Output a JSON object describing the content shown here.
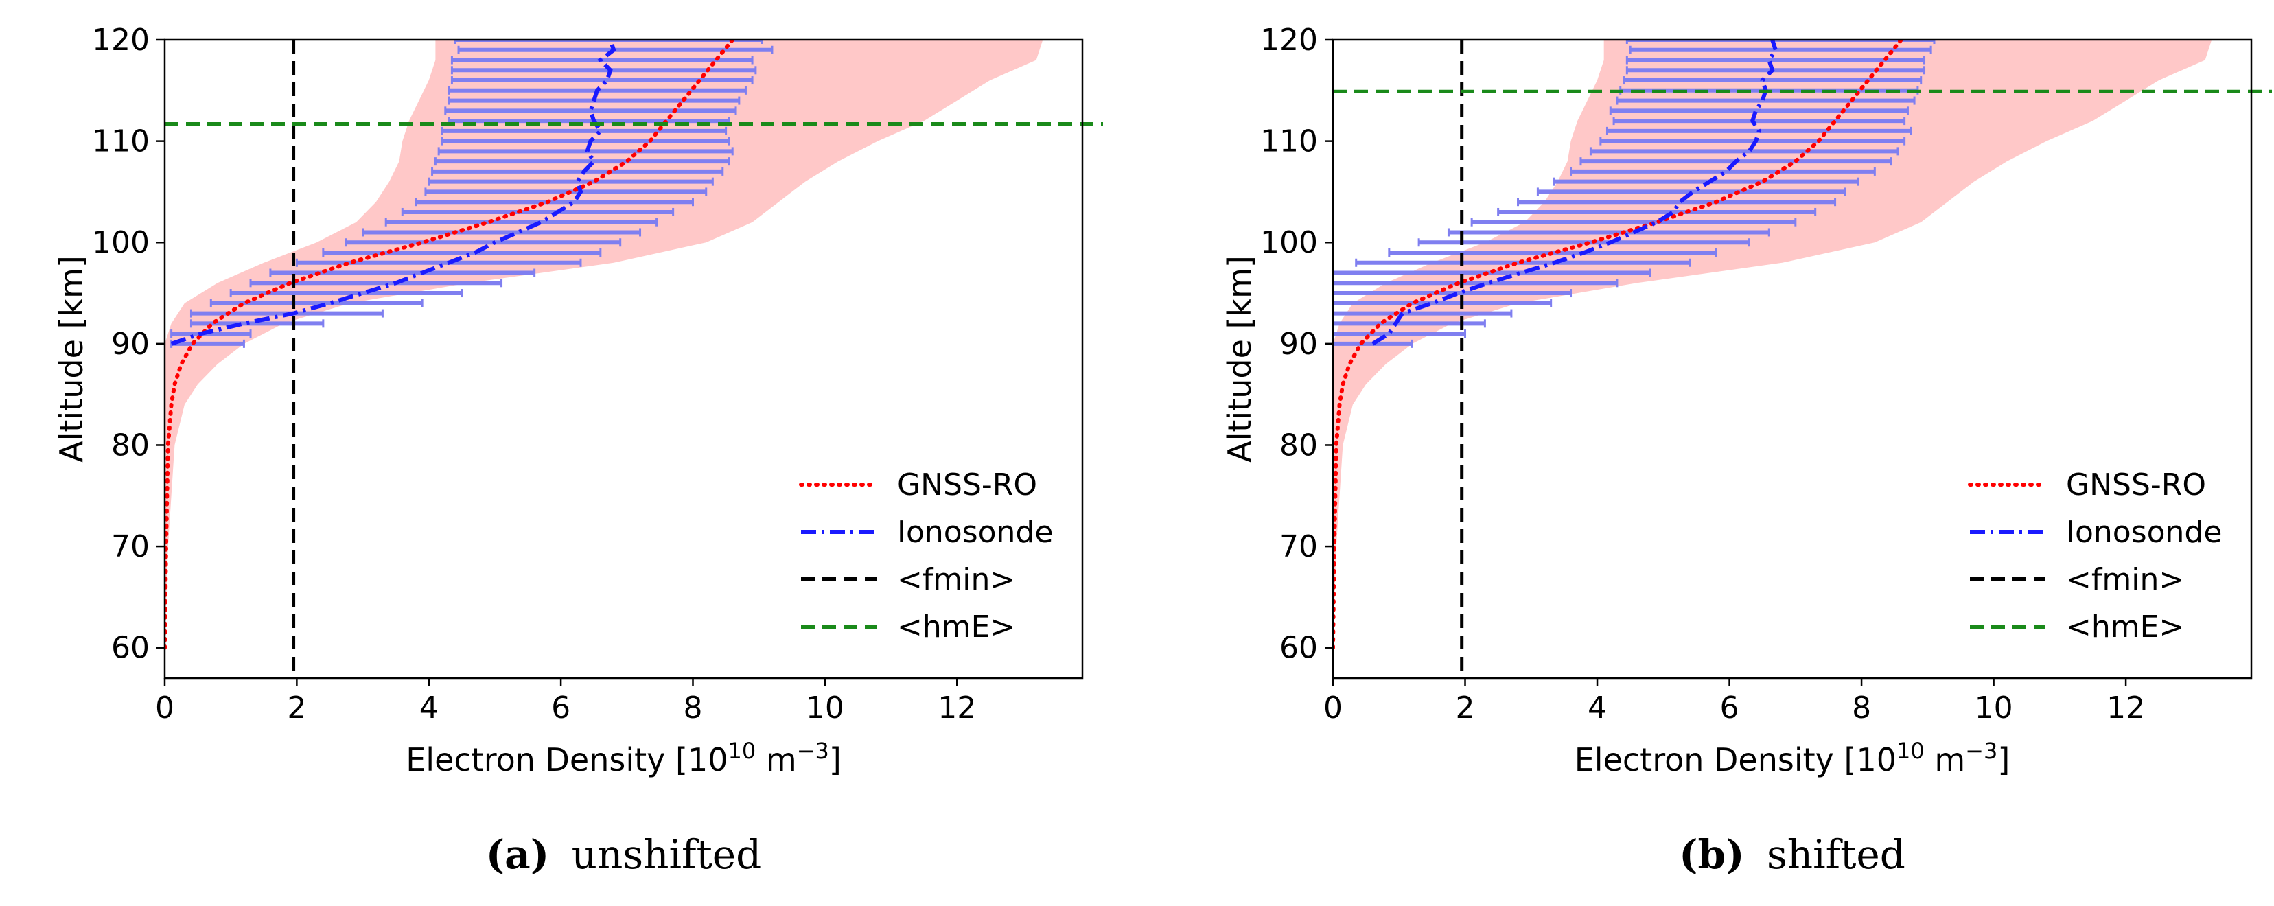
{
  "chart_data": [
    {
      "type": "line",
      "panel": "a",
      "caption_letter": "(a)",
      "caption_text": "unshifted",
      "xlabel_prefix": "Electron Density [10",
      "xlabel_exp": "10",
      "xlabel_mid": " m",
      "xlabel_exp2": "−3",
      "xlabel_suffix": "]",
      "ylabel": "Altitude [km]",
      "xlim": [
        0,
        13.9
      ],
      "ylim": [
        57,
        120
      ],
      "xticks": [
        0,
        2,
        4,
        6,
        8,
        10,
        12
      ],
      "yticks": [
        60,
        70,
        80,
        90,
        100,
        110,
        120
      ],
      "legend": [
        "GNSS-RO",
        "Ionosonde",
        "<fmin>",
        "<hmE>"
      ],
      "legend_position": "lower-right",
      "fmin": 1.95,
      "hmE": 111.7,
      "gnss_ro": {
        "altitude": [
          60,
          70,
          80,
          84,
          86,
          88,
          90,
          92,
          94,
          96,
          98,
          100,
          102,
          104,
          106,
          108,
          110,
          112,
          114,
          116,
          118,
          120
        ],
        "density": [
          0.0,
          0.02,
          0.05,
          0.1,
          0.15,
          0.25,
          0.42,
          0.72,
          1.2,
          1.9,
          2.8,
          3.9,
          4.9,
          5.8,
          6.5,
          7.0,
          7.35,
          7.6,
          7.85,
          8.1,
          8.35,
          8.6
        ]
      },
      "gnss_band": {
        "altitude": [
          60,
          70,
          80,
          84,
          86,
          88,
          90,
          92,
          94,
          96,
          98,
          100,
          102,
          104,
          106,
          108,
          110,
          112,
          114,
          116,
          118,
          120
        ],
        "lower": [
          0.0,
          0.0,
          0.0,
          0.0,
          0.0,
          0.0,
          0.0,
          0.1,
          0.3,
          0.8,
          1.5,
          2.3,
          2.9,
          3.2,
          3.4,
          3.55,
          3.6,
          3.7,
          3.85,
          4.0,
          4.1,
          4.1
        ],
        "upper": [
          0.0,
          0.05,
          0.15,
          0.3,
          0.5,
          0.8,
          1.2,
          1.8,
          2.8,
          4.6,
          6.8,
          8.2,
          8.9,
          9.3,
          9.7,
          10.2,
          10.8,
          11.5,
          12.0,
          12.5,
          13.2,
          13.3
        ]
      },
      "ionosonde": {
        "altitude": [
          90,
          91,
          92,
          93,
          94,
          95,
          96,
          97,
          98,
          99,
          100,
          101,
          102,
          103,
          104,
          105,
          106,
          107,
          108,
          109,
          110,
          111,
          112,
          113,
          114,
          115,
          116,
          117,
          118,
          119,
          120
        ],
        "density": [
          0.1,
          0.55,
          1.2,
          1.95,
          2.5,
          3.0,
          3.5,
          3.9,
          4.3,
          4.7,
          5.0,
          5.35,
          5.7,
          5.95,
          6.2,
          6.3,
          6.25,
          6.35,
          6.5,
          6.4,
          6.45,
          6.6,
          6.5,
          6.45,
          6.5,
          6.55,
          6.7,
          6.75,
          6.6,
          6.8,
          6.75
        ],
        "err_low": [
          0.1,
          0.1,
          0.4,
          0.4,
          0.7,
          1.0,
          1.3,
          1.6,
          2.0,
          2.4,
          2.75,
          3.0,
          3.35,
          3.6,
          3.8,
          3.95,
          4.0,
          4.05,
          4.1,
          4.15,
          4.2,
          4.2,
          4.3,
          4.25,
          4.3,
          4.3,
          4.35,
          4.35,
          4.35,
          4.45,
          4.4
        ],
        "err_high": [
          1.2,
          1.3,
          2.4,
          3.3,
          3.9,
          4.5,
          5.1,
          5.6,
          6.3,
          6.6,
          6.9,
          7.2,
          7.45,
          7.7,
          8.0,
          8.2,
          8.3,
          8.45,
          8.55,
          8.6,
          8.55,
          8.5,
          8.55,
          8.65,
          8.7,
          8.8,
          8.9,
          8.95,
          8.9,
          9.2,
          9.05
        ]
      }
    },
    {
      "type": "line",
      "panel": "b",
      "caption_letter": "(b)",
      "caption_text": "shifted",
      "xlabel_prefix": "Electron Density [10",
      "xlabel_exp": "10",
      "xlabel_mid": " m",
      "xlabel_exp2": "−3",
      "xlabel_suffix": "]",
      "ylabel": "Altitude [km]",
      "xlim": [
        0,
        13.9
      ],
      "ylim": [
        57,
        120
      ],
      "xticks": [
        0,
        2,
        4,
        6,
        8,
        10,
        12
      ],
      "yticks": [
        60,
        70,
        80,
        90,
        100,
        110,
        120
      ],
      "legend": [
        "GNSS-RO",
        "Ionosonde",
        "<fmin>",
        "<hmE>"
      ],
      "legend_position": "lower-right",
      "fmin": 1.95,
      "hmE": 114.9,
      "gnss_ro": {
        "altitude": [
          60,
          70,
          80,
          84,
          86,
          88,
          90,
          92,
          94,
          96,
          98,
          100,
          102,
          104,
          106,
          108,
          110,
          112,
          114,
          116,
          118,
          120
        ],
        "density": [
          0.0,
          0.02,
          0.05,
          0.1,
          0.15,
          0.25,
          0.42,
          0.72,
          1.2,
          1.9,
          2.8,
          3.9,
          4.9,
          5.8,
          6.5,
          7.0,
          7.35,
          7.6,
          7.85,
          8.1,
          8.35,
          8.6
        ]
      },
      "gnss_band": {
        "altitude": [
          60,
          70,
          80,
          84,
          86,
          88,
          90,
          92,
          94,
          96,
          98,
          100,
          102,
          104,
          106,
          108,
          110,
          112,
          114,
          116,
          118,
          120
        ],
        "lower": [
          0.0,
          0.0,
          0.0,
          0.0,
          0.0,
          0.0,
          0.0,
          0.1,
          0.3,
          0.8,
          1.5,
          2.3,
          2.9,
          3.2,
          3.4,
          3.55,
          3.6,
          3.7,
          3.85,
          4.0,
          4.1,
          4.1
        ],
        "upper": [
          0.0,
          0.05,
          0.15,
          0.3,
          0.5,
          0.8,
          1.2,
          1.8,
          2.8,
          4.6,
          6.8,
          8.2,
          8.9,
          9.3,
          9.7,
          10.2,
          10.8,
          11.5,
          12.0,
          12.5,
          13.2,
          13.3
        ]
      },
      "ionosonde": {
        "altitude": [
          90,
          91,
          92,
          93,
          94,
          95,
          96,
          97,
          98,
          99,
          100,
          101,
          102,
          103,
          104,
          105,
          106,
          107,
          108,
          109,
          110,
          111,
          112,
          113,
          114,
          115,
          116,
          117,
          118,
          119,
          120
        ],
        "density": [
          0.6,
          0.85,
          0.95,
          1.05,
          1.5,
          1.9,
          2.35,
          2.85,
          3.35,
          3.8,
          4.2,
          4.55,
          4.9,
          5.15,
          5.25,
          5.45,
          5.7,
          5.95,
          6.1,
          6.3,
          6.4,
          6.45,
          6.35,
          6.4,
          6.5,
          6.55,
          6.5,
          6.65,
          6.6,
          6.7,
          6.65
        ],
        "err_low": [
          0.0,
          0.0,
          0.0,
          0.0,
          0.0,
          0.0,
          0.0,
          0.0,
          0.35,
          0.85,
          1.3,
          1.75,
          2.1,
          2.5,
          2.8,
          3.1,
          3.35,
          3.6,
          3.75,
          3.9,
          4.05,
          4.15,
          4.25,
          4.2,
          4.3,
          4.35,
          4.4,
          4.45,
          4.45,
          4.5,
          4.45
        ],
        "err_high": [
          1.2,
          2.0,
          2.3,
          2.7,
          3.3,
          3.6,
          4.3,
          4.8,
          5.4,
          5.8,
          6.3,
          6.6,
          7.0,
          7.3,
          7.6,
          7.75,
          7.95,
          8.2,
          8.45,
          8.55,
          8.65,
          8.75,
          8.65,
          8.7,
          8.8,
          8.85,
          8.9,
          8.95,
          8.95,
          9.05,
          9.1
        ]
      }
    }
  ],
  "colors": {
    "gnss": "#ff0000",
    "ionosonde": "#1a1aff",
    "errorbar": "#7f7ff0",
    "band": "#ffc8c8",
    "fmin": "#000000",
    "hmE": "#1a8a1a"
  }
}
